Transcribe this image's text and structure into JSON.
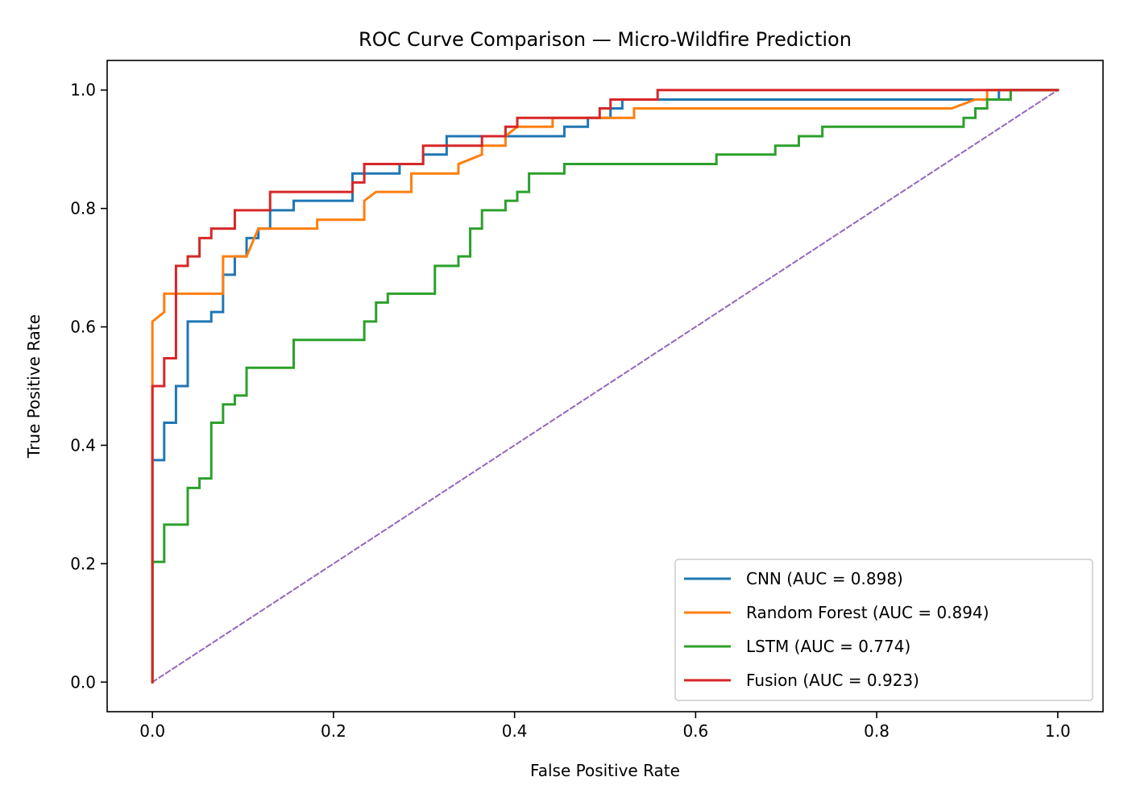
{
  "chart_data": {
    "type": "line",
    "title": "ROC Curve Comparison — Micro-Wildfire Prediction",
    "xlabel": "False Positive Rate",
    "ylabel": "True Positive Rate",
    "xlim": [
      -0.05,
      1.05
    ],
    "ylim": [
      -0.05,
      1.05
    ],
    "xticks": [
      "0.0",
      "0.2",
      "0.4",
      "0.6",
      "0.8",
      "1.0"
    ],
    "yticks": [
      "0.0",
      "0.2",
      "0.4",
      "0.6",
      "0.8",
      "1.0"
    ],
    "grid": false,
    "legend_position": "lower-right",
    "series": [
      {
        "name": "CNN (AUC = 0.898)",
        "color": "#1f77b4",
        "points": [
          [
            0,
            0
          ],
          [
            0,
            0.375
          ],
          [
            0.013,
            0.375
          ],
          [
            0.013,
            0.438
          ],
          [
            0.026,
            0.438
          ],
          [
            0.026,
            0.5
          ],
          [
            0.039,
            0.5
          ],
          [
            0.039,
            0.609
          ],
          [
            0.065,
            0.609
          ],
          [
            0.065,
            0.625
          ],
          [
            0.078,
            0.625
          ],
          [
            0.078,
            0.688
          ],
          [
            0.091,
            0.688
          ],
          [
            0.091,
            0.719
          ],
          [
            0.104,
            0.719
          ],
          [
            0.104,
            0.75
          ],
          [
            0.117,
            0.75
          ],
          [
            0.117,
            0.766
          ],
          [
            0.13,
            0.766
          ],
          [
            0.13,
            0.797
          ],
          [
            0.156,
            0.797
          ],
          [
            0.156,
            0.813
          ],
          [
            0.221,
            0.813
          ],
          [
            0.221,
            0.859
          ],
          [
            0.273,
            0.859
          ],
          [
            0.273,
            0.875
          ],
          [
            0.299,
            0.875
          ],
          [
            0.299,
            0.891
          ],
          [
            0.325,
            0.891
          ],
          [
            0.325,
            0.922
          ],
          [
            0.455,
            0.922
          ],
          [
            0.455,
            0.938
          ],
          [
            0.481,
            0.938
          ],
          [
            0.481,
            0.953
          ],
          [
            0.506,
            0.953
          ],
          [
            0.506,
            0.969
          ],
          [
            0.519,
            0.969
          ],
          [
            0.519,
            0.984
          ],
          [
            0.935,
            0.984
          ],
          [
            0.935,
            1.0
          ],
          [
            1.0,
            1.0
          ]
        ]
      },
      {
        "name": "Random Forest (AUC = 0.894)",
        "color": "#ff7f0e",
        "points": [
          [
            0,
            0
          ],
          [
            0,
            0.609
          ],
          [
            0.013,
            0.625
          ],
          [
            0.013,
            0.656
          ],
          [
            0.078,
            0.656
          ],
          [
            0.078,
            0.719
          ],
          [
            0.104,
            0.719
          ],
          [
            0.117,
            0.766
          ],
          [
            0.182,
            0.766
          ],
          [
            0.182,
            0.781
          ],
          [
            0.234,
            0.781
          ],
          [
            0.234,
            0.813
          ],
          [
            0.247,
            0.828
          ],
          [
            0.286,
            0.828
          ],
          [
            0.286,
            0.859
          ],
          [
            0.338,
            0.859
          ],
          [
            0.338,
            0.875
          ],
          [
            0.364,
            0.891
          ],
          [
            0.364,
            0.906
          ],
          [
            0.39,
            0.906
          ],
          [
            0.39,
            0.922
          ],
          [
            0.403,
            0.938
          ],
          [
            0.442,
            0.938
          ],
          [
            0.442,
            0.953
          ],
          [
            0.532,
            0.953
          ],
          [
            0.532,
            0.969
          ],
          [
            0.883,
            0.969
          ],
          [
            0.909,
            0.984
          ],
          [
            0.922,
            0.984
          ],
          [
            0.922,
            1.0
          ],
          [
            1.0,
            1.0
          ]
        ]
      },
      {
        "name": "LSTM (AUC = 0.774)",
        "color": "#2ca02c",
        "points": [
          [
            0,
            0
          ],
          [
            0,
            0.203
          ],
          [
            0.013,
            0.203
          ],
          [
            0.013,
            0.266
          ],
          [
            0.039,
            0.266
          ],
          [
            0.039,
            0.328
          ],
          [
            0.052,
            0.328
          ],
          [
            0.052,
            0.344
          ],
          [
            0.065,
            0.344
          ],
          [
            0.065,
            0.438
          ],
          [
            0.078,
            0.438
          ],
          [
            0.078,
            0.469
          ],
          [
            0.091,
            0.469
          ],
          [
            0.091,
            0.484
          ],
          [
            0.104,
            0.484
          ],
          [
            0.104,
            0.531
          ],
          [
            0.156,
            0.531
          ],
          [
            0.156,
            0.578
          ],
          [
            0.234,
            0.578
          ],
          [
            0.234,
            0.609
          ],
          [
            0.247,
            0.609
          ],
          [
            0.247,
            0.641
          ],
          [
            0.26,
            0.641
          ],
          [
            0.26,
            0.656
          ],
          [
            0.312,
            0.656
          ],
          [
            0.312,
            0.703
          ],
          [
            0.338,
            0.703
          ],
          [
            0.338,
            0.719
          ],
          [
            0.351,
            0.719
          ],
          [
            0.351,
            0.766
          ],
          [
            0.364,
            0.766
          ],
          [
            0.364,
            0.797
          ],
          [
            0.39,
            0.797
          ],
          [
            0.39,
            0.813
          ],
          [
            0.403,
            0.813
          ],
          [
            0.403,
            0.828
          ],
          [
            0.416,
            0.828
          ],
          [
            0.416,
            0.859
          ],
          [
            0.455,
            0.859
          ],
          [
            0.455,
            0.875
          ],
          [
            0.623,
            0.875
          ],
          [
            0.623,
            0.891
          ],
          [
            0.688,
            0.891
          ],
          [
            0.688,
            0.906
          ],
          [
            0.714,
            0.906
          ],
          [
            0.714,
            0.922
          ],
          [
            0.74,
            0.922
          ],
          [
            0.74,
            0.938
          ],
          [
            0.896,
            0.938
          ],
          [
            0.896,
            0.953
          ],
          [
            0.909,
            0.953
          ],
          [
            0.909,
            0.969
          ],
          [
            0.922,
            0.969
          ],
          [
            0.922,
            0.984
          ],
          [
            0.948,
            0.984
          ],
          [
            0.948,
            1.0
          ],
          [
            1.0,
            1.0
          ]
        ]
      },
      {
        "name": "Fusion (AUC = 0.923)",
        "color": "#d62728",
        "points": [
          [
            0,
            0
          ],
          [
            0,
            0.5
          ],
          [
            0.013,
            0.5
          ],
          [
            0.013,
            0.547
          ],
          [
            0.026,
            0.547
          ],
          [
            0.026,
            0.703
          ],
          [
            0.039,
            0.703
          ],
          [
            0.039,
            0.719
          ],
          [
            0.052,
            0.719
          ],
          [
            0.052,
            0.75
          ],
          [
            0.065,
            0.75
          ],
          [
            0.065,
            0.766
          ],
          [
            0.091,
            0.766
          ],
          [
            0.091,
            0.797
          ],
          [
            0.13,
            0.797
          ],
          [
            0.13,
            0.828
          ],
          [
            0.221,
            0.828
          ],
          [
            0.221,
            0.844
          ],
          [
            0.234,
            0.844
          ],
          [
            0.234,
            0.875
          ],
          [
            0.299,
            0.875
          ],
          [
            0.299,
            0.906
          ],
          [
            0.364,
            0.906
          ],
          [
            0.364,
            0.922
          ],
          [
            0.39,
            0.922
          ],
          [
            0.39,
            0.938
          ],
          [
            0.403,
            0.938
          ],
          [
            0.403,
            0.953
          ],
          [
            0.494,
            0.953
          ],
          [
            0.494,
            0.969
          ],
          [
            0.506,
            0.969
          ],
          [
            0.506,
            0.984
          ],
          [
            0.558,
            0.984
          ],
          [
            0.558,
            1.0
          ],
          [
            1.0,
            1.0
          ]
        ]
      },
      {
        "name": "",
        "color": "#9467bd",
        "dashed": true,
        "points": [
          [
            0,
            0
          ],
          [
            1,
            1
          ]
        ]
      }
    ]
  }
}
